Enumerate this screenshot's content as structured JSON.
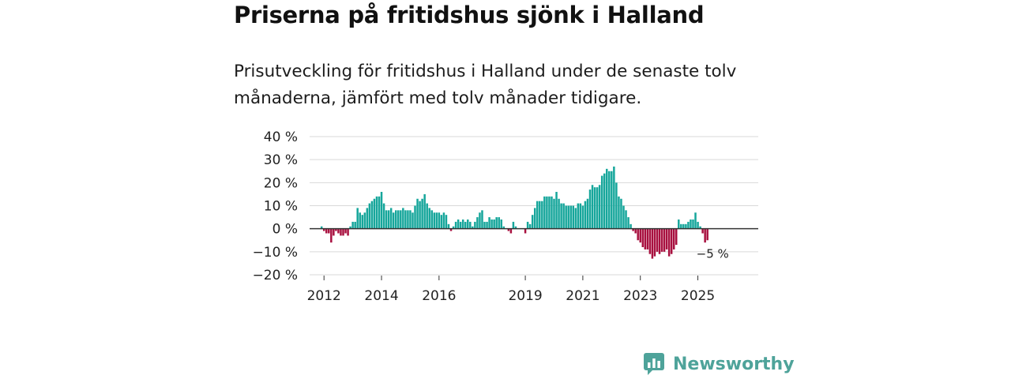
{
  "header": {
    "title": "Priserna på fritidshus sjönk i Halland",
    "subtitle": "Prisutveckling för fritidshus i Halland under de senaste tolv månaderna, jämfört med tolv månader tidigare."
  },
  "brand": {
    "name": "Newsworthy",
    "icon": "newsworthy-logo-icon"
  },
  "colors": {
    "positive": "#16a69b",
    "negative": "#a8103f",
    "grid": "#d9d9d9",
    "zero_line": "#333333"
  },
  "chart_data": {
    "type": "bar",
    "title": "Priserna på fritidshus sjönk i Halland",
    "subtitle": "Prisutveckling för fritidshus i Halland under de senaste tolv månaderna, jämfört med tolv månader tidigare.",
    "xlabel": "",
    "ylabel": "",
    "ylim": [
      -20,
      40
    ],
    "y_ticks": [
      40,
      30,
      20,
      10,
      0,
      -10,
      -20
    ],
    "y_tick_labels": [
      "40 %",
      "30 %",
      "20 %",
      "10 %",
      "0 %",
      "−10 %",
      "−20 %"
    ],
    "x_tick_labels": [
      "2012",
      "2014",
      "2016",
      "2019",
      "2021",
      "2023",
      "2025"
    ],
    "x_tick_positions": [
      2012.0,
      2014.0,
      2016.0,
      2019.0,
      2021.0,
      2023.0,
      2025.0
    ],
    "x_range": [
      2011.5,
      2027.1
    ],
    "grid": true,
    "end_label": "−5 %",
    "series": [
      {
        "x_start": 2011.917,
        "x_step": 0.0833333,
        "values": [
          1,
          -1,
          -2,
          -2,
          -6,
          -3,
          -1,
          -2,
          -3,
          -3,
          -2,
          -3,
          1,
          3,
          3,
          9,
          7,
          6,
          7,
          9,
          11,
          12,
          13,
          14,
          14,
          16,
          11,
          8,
          8,
          9,
          7,
          8,
          8,
          8,
          9,
          8,
          8,
          8,
          7,
          10,
          13,
          12,
          13,
          15,
          11,
          9,
          8,
          7,
          7,
          7,
          6,
          7,
          6,
          2,
          -1,
          1,
          3,
          4,
          3,
          4,
          3,
          4,
          3,
          1,
          3,
          5,
          7,
          8,
          3,
          3,
          5,
          4,
          4,
          5,
          5,
          4,
          1,
          0,
          -1,
          -2,
          3,
          1,
          0,
          0,
          0,
          -2,
          3,
          2,
          6,
          9,
          12,
          12,
          12,
          14,
          14,
          14,
          14,
          13,
          16,
          13,
          11,
          11,
          10,
          10,
          10,
          10,
          9,
          11,
          11,
          10,
          12,
          13,
          17,
          19,
          18,
          18,
          19,
          23,
          24,
          26,
          25,
          25,
          27,
          20,
          14,
          13,
          10,
          8,
          5,
          2,
          -1,
          -2,
          -5,
          -6,
          -8,
          -9,
          -9,
          -11,
          -13,
          -12,
          -10,
          -11,
          -10,
          -10,
          -9,
          -12,
          -11,
          -9,
          -7,
          4,
          2,
          2,
          2,
          3,
          4,
          4,
          7,
          3,
          1,
          -2,
          -6,
          -5
        ]
      }
    ]
  }
}
